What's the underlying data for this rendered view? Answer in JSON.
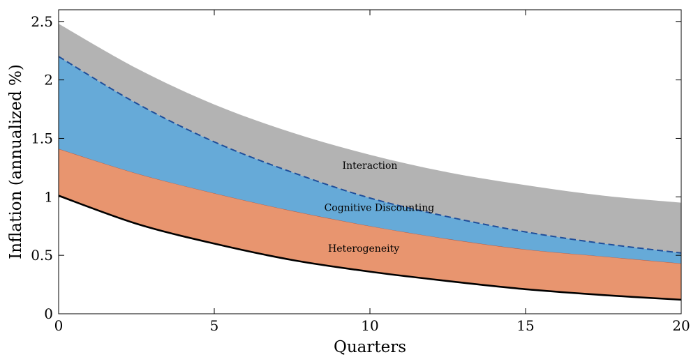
{
  "chart_data": {
    "type": "area",
    "xlabel": "Quarters",
    "ylabel": "Inflation (annualized %)",
    "xlim": [
      0,
      20
    ],
    "ylim": [
      0,
      2.6
    ],
    "xticks": [
      0,
      5,
      10,
      15,
      20
    ],
    "yticks": [
      0,
      0.5,
      1,
      1.5,
      2,
      2.5
    ],
    "ytick_labels": [
      "0",
      "0.5",
      "1",
      "1.5",
      "2",
      "2.5"
    ],
    "grid": false,
    "x": [
      0,
      2.5,
      5,
      7.5,
      10,
      12.5,
      15,
      17.5,
      20
    ],
    "baseline_line": {
      "values": [
        1.01,
        0.77,
        0.6,
        0.46,
        0.36,
        0.28,
        0.21,
        0.16,
        0.12
      ],
      "color": "#000000"
    },
    "dashed_line": {
      "values": [
        2.2,
        1.8,
        1.47,
        1.21,
        0.99,
        0.83,
        0.7,
        0.6,
        0.52
      ],
      "color": "#1f4e9a"
    },
    "series": [
      {
        "name": "Heterogeneity",
        "lower": [
          1.01,
          0.77,
          0.6,
          0.46,
          0.36,
          0.28,
          0.21,
          0.16,
          0.12
        ],
        "upper": [
          1.41,
          1.2,
          1.03,
          0.88,
          0.75,
          0.64,
          0.55,
          0.49,
          0.43
        ],
        "color": "#e8956f"
      },
      {
        "name": "Cognitive Discounting",
        "lower": [
          1.41,
          1.2,
          1.03,
          0.88,
          0.75,
          0.64,
          0.55,
          0.49,
          0.43
        ],
        "upper": [
          2.2,
          1.8,
          1.47,
          1.21,
          0.99,
          0.83,
          0.7,
          0.6,
          0.52
        ],
        "color": "#66aad8"
      },
      {
        "name": "Interaction",
        "lower": [
          2.2,
          1.8,
          1.47,
          1.21,
          0.99,
          0.83,
          0.7,
          0.6,
          0.52
        ],
        "upper": [
          2.48,
          2.1,
          1.79,
          1.55,
          1.36,
          1.21,
          1.1,
          1.01,
          0.95
        ],
        "color": "#b3b3b3"
      }
    ],
    "annotations": [
      {
        "text": "Interaction",
        "x": 10,
        "y": 1.24
      },
      {
        "text": "Cognitive Discounting",
        "x": 10.3,
        "y": 0.88
      },
      {
        "text": "Heterogeneity",
        "x": 9.8,
        "y": 0.53
      }
    ]
  }
}
